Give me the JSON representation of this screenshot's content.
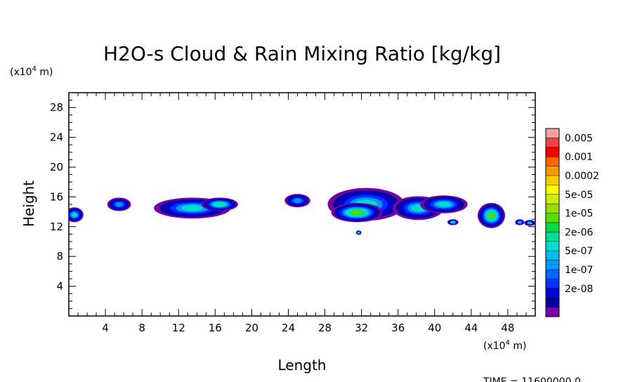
{
  "chart_data": {
    "type": "heatmap",
    "title": "H2O-s Cloud & Rain Mixing Ratio [kg/kg]",
    "xlabel": "Length",
    "ylabel": "Height",
    "x_unit": "(x10",
    "x_unit_exp": "4",
    "x_unit_tail": " m)",
    "y_unit": "(x10",
    "y_unit_exp": "4",
    "y_unit_tail": " m)",
    "xlim": [
      0,
      51
    ],
    "ylim": [
      0,
      30
    ],
    "x_ticks": [
      4,
      8,
      12,
      16,
      20,
      24,
      28,
      32,
      36,
      40,
      44,
      48
    ],
    "y_ticks": [
      4,
      8,
      12,
      16,
      20,
      24,
      28
    ],
    "colorbar": {
      "labels": [
        "0.005",
        "0.001",
        "0.0002",
        "5e-05",
        "1e-05",
        "2e-06",
        "5e-07",
        "1e-07",
        "2e-08"
      ],
      "colors": [
        "#f4a0a0",
        "#ee4444",
        "#ee0000",
        "#ff6600",
        "#ff9900",
        "#ffcc00",
        "#ffff00",
        "#ccee00",
        "#99dd00",
        "#55dd00",
        "#00dd44",
        "#00dd99",
        "#00ddcc",
        "#00bbee",
        "#0099ff",
        "#0066ff",
        "#0033ff",
        "#0000dd",
        "#000099",
        "#7700aa"
      ]
    },
    "clouds": [
      {
        "x": 0.6,
        "y": 13.6,
        "rx": 1.0,
        "ry": 1.0,
        "level": 2
      },
      {
        "x": 5.5,
        "y": 15.0,
        "rx": 1.3,
        "ry": 0.9,
        "level": 1
      },
      {
        "x": 13.5,
        "y": 14.5,
        "rx": 4.2,
        "ry": 1.4,
        "level": 2
      },
      {
        "x": 16.5,
        "y": 15.0,
        "rx": 2.0,
        "ry": 0.9,
        "level": 3
      },
      {
        "x": 25.0,
        "y": 15.5,
        "rx": 1.4,
        "ry": 0.9,
        "level": 1
      },
      {
        "x": 32.5,
        "y": 15.0,
        "rx": 4.2,
        "ry": 2.2,
        "level": 2
      },
      {
        "x": 31.5,
        "y": 13.9,
        "rx": 2.8,
        "ry": 1.3,
        "level": 4
      },
      {
        "x": 38.2,
        "y": 14.5,
        "rx": 2.8,
        "ry": 1.6,
        "level": 2
      },
      {
        "x": 41.0,
        "y": 15.0,
        "rx": 2.6,
        "ry": 1.2,
        "level": 2
      },
      {
        "x": 46.2,
        "y": 13.5,
        "rx": 1.5,
        "ry": 1.7,
        "level": 4
      },
      {
        "x": 42.0,
        "y": 12.6,
        "rx": 0.6,
        "ry": 0.4,
        "level": 3
      },
      {
        "x": 49.3,
        "y": 12.6,
        "rx": 0.5,
        "ry": 0.4,
        "level": 2
      },
      {
        "x": 50.4,
        "y": 12.5,
        "rx": 0.6,
        "ry": 0.4,
        "level": 2
      },
      {
        "x": 31.7,
        "y": 11.2,
        "rx": 0.3,
        "ry": 0.3,
        "level": 3
      }
    ]
  },
  "footer": {
    "time_label": "TIME = 11600000.0"
  }
}
